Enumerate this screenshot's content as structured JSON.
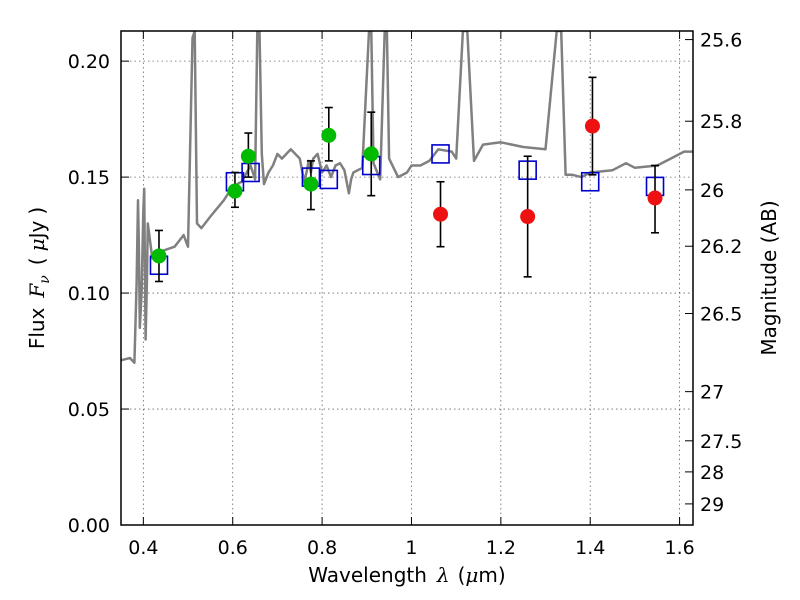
{
  "chart_data": {
    "type": "scatter",
    "xlabel_text": "Wavelength",
    "xlabel_symbol": "λ",
    "xlabel_unit_open": "(",
    "xlabel_unit_mu": "μ",
    "xlabel_unit_rest": "m)",
    "ylabel_text": "Flux",
    "ylabel_symbol": "F",
    "ylabel_subscript": "ν",
    "ylabel_unit_open": "(",
    "ylabel_unit_mu": "μ",
    "ylabel_unit_rest": "Jy",
    "ylabel_unit_close": ")",
    "y2label": "Magnitude (AB)",
    "xlim": [
      0.35,
      1.63
    ],
    "ylim": [
      0.0,
      0.213
    ],
    "x_ticks": [
      0.4,
      0.6,
      0.8,
      1.0,
      1.2,
      1.4,
      1.6
    ],
    "x_tick_labels": [
      "0.4",
      "0.6",
      "0.8",
      "1",
      "1.2",
      "1.4",
      "1.6"
    ],
    "y_ticks": [
      0.0,
      0.05,
      0.1,
      0.15,
      0.2
    ],
    "y_tick_labels": [
      "0.00",
      "0.05",
      "0.10",
      "0.15",
      "0.20"
    ],
    "y2_ticks": [
      {
        "label": "25.6",
        "flux": 0.2093
      },
      {
        "label": "25.8",
        "flux": 0.1741
      },
      {
        "label": "26",
        "flux": 0.1445
      },
      {
        "label": "26.2",
        "flux": 0.1202
      },
      {
        "label": "26.5",
        "flux": 0.0912
      },
      {
        "label": "27",
        "flux": 0.0575
      },
      {
        "label": "27.5",
        "flux": 0.0363
      },
      {
        "label": "28",
        "flux": 0.0229
      },
      {
        "label": "29",
        "flux": 0.0091
      }
    ],
    "grid": true,
    "colors": {
      "model": "#808080",
      "model_points": "#0000cc",
      "optical": "#00bb00",
      "infrared": "#ee1111",
      "errorbar": "#000000"
    },
    "model_spectrum": [
      [
        0.35,
        0.071
      ],
      [
        0.37,
        0.072
      ],
      [
        0.38,
        0.07
      ],
      [
        0.385,
        0.104
      ],
      [
        0.388,
        0.14
      ],
      [
        0.39,
        0.12
      ],
      [
        0.392,
        0.085
      ],
      [
        0.396,
        0.1
      ],
      [
        0.4,
        0.135
      ],
      [
        0.402,
        0.145
      ],
      [
        0.405,
        0.08
      ],
      [
        0.408,
        0.105
      ],
      [
        0.41,
        0.13
      ],
      [
        0.42,
        0.115
      ],
      [
        0.44,
        0.118
      ],
      [
        0.47,
        0.12
      ],
      [
        0.49,
        0.125
      ],
      [
        0.5,
        0.12
      ],
      [
        0.51,
        0.21
      ],
      [
        0.515,
        0.213
      ],
      [
        0.52,
        0.13
      ],
      [
        0.53,
        0.128
      ],
      [
        0.55,
        0.133
      ],
      [
        0.58,
        0.14
      ],
      [
        0.6,
        0.146
      ],
      [
        0.62,
        0.148
      ],
      [
        0.64,
        0.155
      ],
      [
        0.65,
        0.149
      ],
      [
        0.655,
        0.213
      ],
      [
        0.66,
        0.213
      ],
      [
        0.665,
        0.16
      ],
      [
        0.67,
        0.147
      ],
      [
        0.68,
        0.152
      ],
      [
        0.69,
        0.155
      ],
      [
        0.7,
        0.16
      ],
      [
        0.71,
        0.158
      ],
      [
        0.73,
        0.162
      ],
      [
        0.75,
        0.158
      ],
      [
        0.76,
        0.148
      ],
      [
        0.765,
        0.152
      ],
      [
        0.77,
        0.157
      ],
      [
        0.775,
        0.152
      ],
      [
        0.78,
        0.158
      ],
      [
        0.79,
        0.16
      ],
      [
        0.8,
        0.152
      ],
      [
        0.81,
        0.155
      ],
      [
        0.82,
        0.15
      ],
      [
        0.83,
        0.155
      ],
      [
        0.84,
        0.156
      ],
      [
        0.85,
        0.153
      ],
      [
        0.86,
        0.143
      ],
      [
        0.865,
        0.149
      ],
      [
        0.87,
        0.152
      ],
      [
        0.89,
        0.154
      ],
      [
        0.905,
        0.213
      ],
      [
        0.91,
        0.213
      ],
      [
        0.915,
        0.156
      ],
      [
        0.93,
        0.149
      ],
      [
        0.94,
        0.213
      ],
      [
        0.945,
        0.213
      ],
      [
        0.95,
        0.158
      ],
      [
        0.97,
        0.15
      ],
      [
        0.99,
        0.152
      ],
      [
        1.0,
        0.155
      ],
      [
        1.02,
        0.155
      ],
      [
        1.04,
        0.157
      ],
      [
        1.06,
        0.162
      ],
      [
        1.09,
        0.161
      ],
      [
        1.1,
        0.158
      ],
      [
        1.115,
        0.213
      ],
      [
        1.125,
        0.213
      ],
      [
        1.14,
        0.157
      ],
      [
        1.16,
        0.164
      ],
      [
        1.2,
        0.165
      ],
      [
        1.25,
        0.163
      ],
      [
        1.3,
        0.162
      ],
      [
        1.325,
        0.213
      ],
      [
        1.335,
        0.213
      ],
      [
        1.345,
        0.151
      ],
      [
        1.36,
        0.151
      ],
      [
        1.38,
        0.15
      ],
      [
        1.4,
        0.152
      ],
      [
        1.45,
        0.153
      ],
      [
        1.48,
        0.156
      ],
      [
        1.5,
        0.154
      ],
      [
        1.55,
        0.155
      ],
      [
        1.58,
        0.158
      ],
      [
        1.61,
        0.161
      ],
      [
        1.63,
        0.161
      ]
    ],
    "model_points": [
      {
        "x": 0.435,
        "y": 0.112
      },
      {
        "x": 0.605,
        "y": 0.148
      },
      {
        "x": 0.64,
        "y": 0.152
      },
      {
        "x": 0.775,
        "y": 0.15
      },
      {
        "x": 0.815,
        "y": 0.149
      },
      {
        "x": 0.91,
        "y": 0.155
      },
      {
        "x": 1.065,
        "y": 0.16
      },
      {
        "x": 1.26,
        "y": 0.153
      },
      {
        "x": 1.4,
        "y": 0.148
      },
      {
        "x": 1.545,
        "y": 0.146
      }
    ],
    "optical_points": [
      {
        "x": 0.435,
        "y": 0.116,
        "err_low": 0.105,
        "err_high": 0.127
      },
      {
        "x": 0.605,
        "y": 0.144,
        "err_low": 0.137,
        "err_high": 0.152
      },
      {
        "x": 0.635,
        "y": 0.159,
        "err_low": 0.15,
        "err_high": 0.169
      },
      {
        "x": 0.775,
        "y": 0.147,
        "err_low": 0.136,
        "err_high": 0.157
      },
      {
        "x": 0.815,
        "y": 0.168,
        "err_low": 0.157,
        "err_high": 0.18
      },
      {
        "x": 0.91,
        "y": 0.16,
        "err_low": 0.142,
        "err_high": 0.178
      }
    ],
    "infrared_points": [
      {
        "x": 1.065,
        "y": 0.134,
        "err_low": 0.12,
        "err_high": 0.148
      },
      {
        "x": 1.26,
        "y": 0.133,
        "err_low": 0.107,
        "err_high": 0.159
      },
      {
        "x": 1.405,
        "y": 0.172,
        "err_low": 0.151,
        "err_high": 0.193
      },
      {
        "x": 1.545,
        "y": 0.141,
        "err_low": 0.126,
        "err_high": 0.155
      }
    ]
  }
}
